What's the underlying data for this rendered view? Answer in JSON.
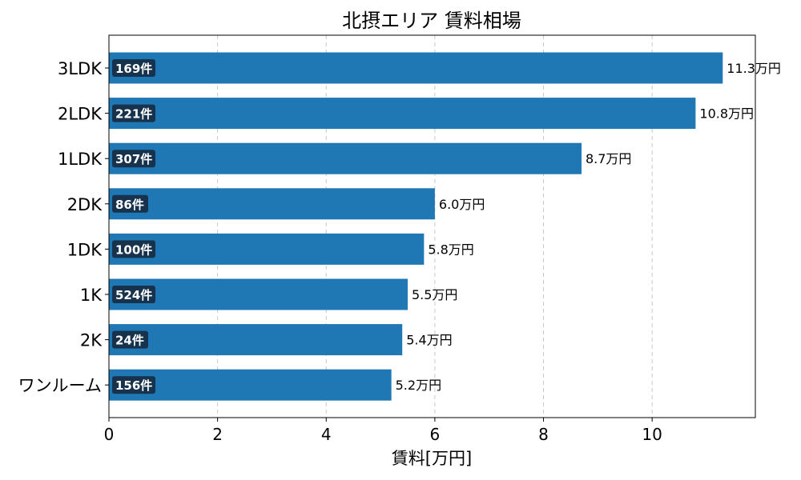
{
  "chart_data": {
    "type": "bar",
    "orientation": "horizontal",
    "title": "北摂エリア 賃料相場",
    "xlabel": "賃料[万円]",
    "ylabel": "",
    "categories": [
      "3LDK",
      "2LDK",
      "1LDK",
      "2DK",
      "1DK",
      "1K",
      "2K",
      "ワンルーム"
    ],
    "values": [
      11.3,
      10.8,
      8.7,
      6.0,
      5.8,
      5.5,
      5.4,
      5.2
    ],
    "value_labels": [
      "11.3万円",
      "10.8万円",
      "8.7万円",
      "6.0万円",
      "5.8万円",
      "5.5万円",
      "5.4万円",
      "5.2万円"
    ],
    "count_labels": [
      "169件",
      "221件",
      "307件",
      "86件",
      "100件",
      "524件",
      "24件",
      "156件"
    ],
    "xlim": [
      0,
      11.9
    ],
    "xticks": [
      0,
      2,
      4,
      6,
      8,
      10
    ],
    "grid": "vertical-dashed",
    "bar_color": "#1f77b4",
    "count_box_color": "#17324d"
  }
}
